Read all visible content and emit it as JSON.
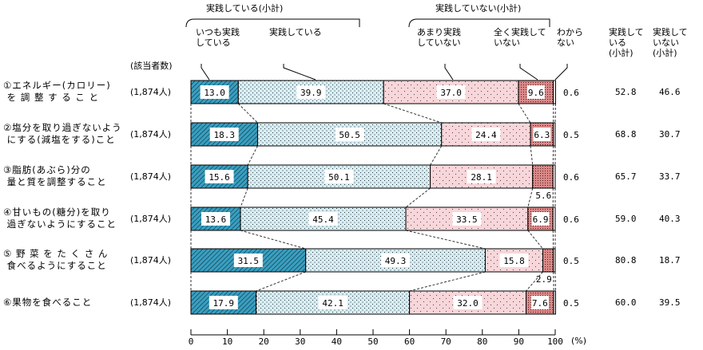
{
  "chart_data": {
    "type": "bar",
    "orientation": "horizontal-stacked",
    "count_header": "(該当者数)",
    "group_headers": {
      "practicing": "実践している(小計)",
      "not_practicing": "実践していない(小計)"
    },
    "legend": [
      "いつも実践\nしている",
      "実践している",
      "あまり実践\nしていない",
      "全く実践して\nいない",
      "わから\nない"
    ],
    "subtotal_headers": [
      "実践して\nいる\n(小計)",
      "実践して\nいない\n(小計)"
    ],
    "colors": [
      "#3a9fc0",
      "#d6eef6",
      "#f8d6da",
      "#d98888"
    ],
    "categories": [
      {
        "label": "①エネルギー(カロリー)\n を 調 整 す る こ と",
        "n": "(1,874人)"
      },
      {
        "label": "②塩分を取り過ぎないよう\n にする(減塩をする)こと",
        "n": "(1,874人)"
      },
      {
        "label": "③脂肪(あぶら)分の\n 量と質を調整すること",
        "n": "(1,874人)"
      },
      {
        "label": "④甘いもの(糖分)を取り\n 過ぎないようにすること",
        "n": "(1,874人)"
      },
      {
        "label": "⑤ 野 菜 を た く さ ん\n 食べるようにすること",
        "n": "(1,874人)"
      },
      {
        "label": "⑥果物を食べること",
        "n": "(1,874人)"
      }
    ],
    "series": [
      {
        "name": "いつも実践している",
        "values": [
          13.0,
          18.3,
          15.6,
          13.6,
          31.5,
          17.9
        ]
      },
      {
        "name": "実践している",
        "values": [
          39.9,
          50.5,
          50.1,
          45.4,
          49.3,
          42.1
        ]
      },
      {
        "name": "あまり実践していない",
        "values": [
          37.0,
          24.4,
          28.1,
          33.5,
          15.8,
          32.0
        ]
      },
      {
        "name": "全く実践していない",
        "values": [
          9.6,
          6.3,
          5.6,
          6.9,
          2.9,
          7.6
        ]
      },
      {
        "name": "わからない",
        "values": [
          0.6,
          0.5,
          0.6,
          0.6,
          0.5,
          0.5
        ]
      }
    ],
    "subtotal_practicing": [
      52.8,
      68.8,
      65.7,
      59.0,
      80.8,
      60.0
    ],
    "subtotal_not_practicing": [
      46.6,
      30.7,
      33.7,
      40.3,
      18.7,
      39.5
    ],
    "xlim": [
      0,
      100
    ],
    "xticks": [
      "0",
      "10",
      "20",
      "30",
      "40",
      "50",
      "60",
      "70",
      "80",
      "90",
      "100"
    ],
    "xunit": "(%)"
  }
}
